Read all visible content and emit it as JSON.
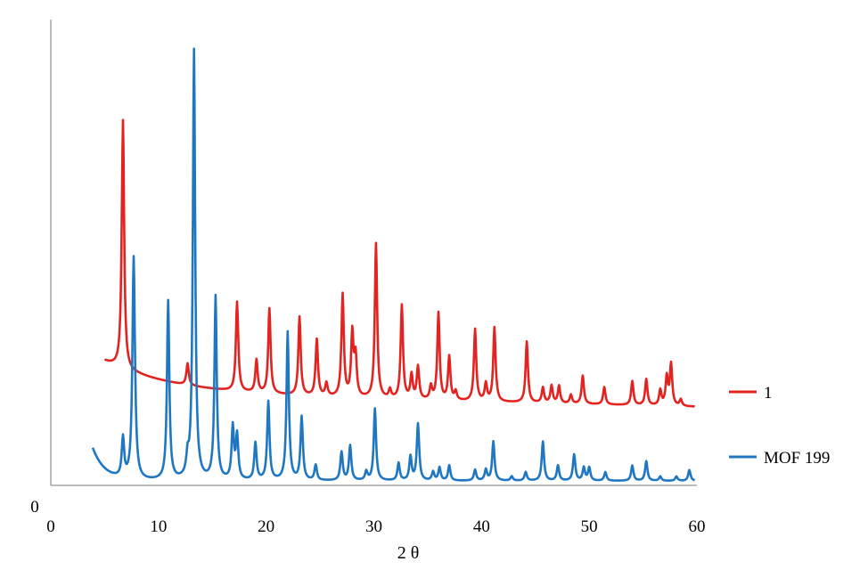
{
  "chart_data": {
    "type": "line",
    "title": "",
    "xlabel": "2 θ",
    "ylabel": "",
    "xlim": [
      0,
      60
    ],
    "x_ticks": [
      "0",
      "10",
      "20",
      "30",
      "40",
      "50",
      "60"
    ],
    "y_ticks": [
      "0"
    ],
    "grid": false,
    "legend_position": "right",
    "series": [
      {
        "name": "1",
        "color": "#e3231f",
        "baseline": 0.18,
        "decay": {
          "start_x": 5,
          "start_y": 0.285,
          "slope": 0.03,
          "rate": 0.15
        },
        "peaks": [
          [
            6.7,
            0.57,
            0.13
          ],
          [
            12.7,
            0.05,
            0.13
          ],
          [
            17.3,
            0.205,
            0.13
          ],
          [
            19.1,
            0.075,
            0.13
          ],
          [
            20.3,
            0.195,
            0.13
          ],
          [
            23.1,
            0.18,
            0.13
          ],
          [
            24.7,
            0.13,
            0.13
          ],
          [
            25.6,
            0.03,
            0.13
          ],
          [
            27.1,
            0.235,
            0.13
          ],
          [
            28.0,
            0.145,
            0.13
          ],
          [
            28.3,
            0.09,
            0.13
          ],
          [
            30.2,
            0.355,
            0.13
          ],
          [
            31.5,
            0.02,
            0.13
          ],
          [
            32.6,
            0.215,
            0.13
          ],
          [
            33.5,
            0.055,
            0.13
          ],
          [
            34.1,
            0.075,
            0.13
          ],
          [
            35.3,
            0.03,
            0.13
          ],
          [
            36.0,
            0.2,
            0.13
          ],
          [
            37.0,
            0.1,
            0.13
          ],
          [
            37.6,
            0.02,
            0.13
          ],
          [
            39.4,
            0.165,
            0.13
          ],
          [
            40.4,
            0.04,
            0.13
          ],
          [
            41.2,
            0.17,
            0.13
          ],
          [
            44.2,
            0.14,
            0.13
          ],
          [
            45.7,
            0.035,
            0.13
          ],
          [
            46.5,
            0.04,
            0.13
          ],
          [
            47.2,
            0.04,
            0.13
          ],
          [
            48.3,
            0.02,
            0.13
          ],
          [
            49.4,
            0.065,
            0.13
          ],
          [
            51.4,
            0.04,
            0.13
          ],
          [
            54.0,
            0.055,
            0.13
          ],
          [
            55.3,
            0.06,
            0.13
          ],
          [
            56.6,
            0.035,
            0.13
          ],
          [
            57.2,
            0.065,
            0.13
          ],
          [
            57.6,
            0.095,
            0.13
          ],
          [
            58.5,
            0.015,
            0.13
          ]
        ]
      },
      {
        "name": "MOF 199",
        "color": "#1f77c2",
        "baseline": 0.01,
        "decay": {
          "start_x": 3.9,
          "start_y": 0.085,
          "slope": 0.0,
          "rate": 0.9
        },
        "peaks": [
          [
            6.7,
            0.09,
            0.13
          ],
          [
            7.7,
            0.51,
            0.14
          ],
          [
            10.9,
            0.41,
            0.13
          ],
          [
            12.7,
            0.04,
            0.13
          ],
          [
            13.3,
            0.985,
            0.13
          ],
          [
            15.3,
            0.42,
            0.13
          ],
          [
            16.9,
            0.12,
            0.13
          ],
          [
            17.3,
            0.1,
            0.13
          ],
          [
            19.0,
            0.085,
            0.13
          ],
          [
            20.2,
            0.18,
            0.13
          ],
          [
            22.0,
            0.34,
            0.13
          ],
          [
            23.3,
            0.145,
            0.13
          ],
          [
            24.6,
            0.035,
            0.13
          ],
          [
            27.0,
            0.065,
            0.13
          ],
          [
            27.8,
            0.08,
            0.13
          ],
          [
            29.3,
            0.02,
            0.13
          ],
          [
            30.1,
            0.165,
            0.13
          ],
          [
            32.3,
            0.04,
            0.13
          ],
          [
            33.4,
            0.055,
            0.13
          ],
          [
            34.1,
            0.13,
            0.13
          ],
          [
            35.5,
            0.02,
            0.13
          ],
          [
            36.1,
            0.03,
            0.13
          ],
          [
            37.0,
            0.035,
            0.13
          ],
          [
            39.4,
            0.025,
            0.13
          ],
          [
            40.4,
            0.025,
            0.13
          ],
          [
            41.1,
            0.09,
            0.13
          ],
          [
            42.8,
            0.01,
            0.13
          ],
          [
            44.1,
            0.02,
            0.13
          ],
          [
            45.7,
            0.09,
            0.13
          ],
          [
            47.1,
            0.035,
            0.13
          ],
          [
            48.6,
            0.06,
            0.13
          ],
          [
            49.5,
            0.03,
            0.13
          ],
          [
            50.0,
            0.03,
            0.13
          ],
          [
            51.5,
            0.02,
            0.13
          ],
          [
            54.0,
            0.035,
            0.13
          ],
          [
            55.3,
            0.045,
            0.13
          ],
          [
            56.6,
            0.01,
            0.13
          ],
          [
            58.1,
            0.01,
            0.13
          ],
          [
            59.3,
            0.025,
            0.13
          ]
        ]
      }
    ]
  }
}
